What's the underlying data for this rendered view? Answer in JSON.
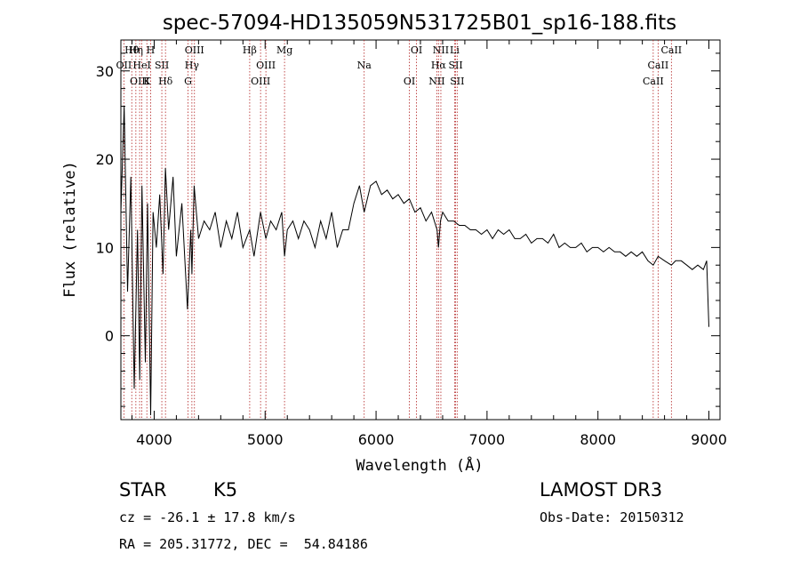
{
  "chart_data": {
    "type": "line",
    "title": "spec-57094-HD135059N531725B01_sp16-188.fits",
    "xlabel": "Wavelength (Å)",
    "ylabel": "Flux (relative)",
    "xlim": [
      3700,
      9100
    ],
    "ylim": [
      -9.5,
      33.5
    ],
    "xticks": [
      4000,
      5000,
      6000,
      7000,
      8000,
      9000
    ],
    "xtick_labels": [
      "4000",
      "5000",
      "6000",
      "7000",
      "8000",
      "9000"
    ],
    "yticks": [
      0,
      10,
      20,
      30
    ],
    "ytick_labels": [
      "0",
      "10",
      "20",
      "30"
    ],
    "grid": false,
    "series": [
      {
        "name": "spectrum",
        "x": [
          3700,
          3730,
          3760,
          3790,
          3820,
          3850,
          3870,
          3890,
          3920,
          3940,
          3968,
          3990,
          4020,
          4050,
          4080,
          4101,
          4130,
          4170,
          4200,
          4250,
          4300,
          4330,
          4340,
          4360,
          4400,
          4450,
          4500,
          4550,
          4600,
          4650,
          4700,
          4750,
          4800,
          4861,
          4900,
          4959,
          5007,
          5050,
          5100,
          5150,
          5175,
          5200,
          5250,
          5300,
          5350,
          5400,
          5450,
          5500,
          5550,
          5600,
          5650,
          5700,
          5750,
          5800,
          5850,
          5893,
          5950,
          6000,
          6050,
          6100,
          6150,
          6200,
          6250,
          6300,
          6350,
          6400,
          6450,
          6500,
          6550,
          6563,
          6580,
          6600,
          6650,
          6700,
          6750,
          6800,
          6850,
          6900,
          6950,
          7000,
          7050,
          7100,
          7150,
          7200,
          7250,
          7300,
          7350,
          7400,
          7450,
          7500,
          7550,
          7600,
          7650,
          7700,
          7750,
          7800,
          7850,
          7900,
          7950,
          8000,
          8050,
          8100,
          8150,
          8200,
          8250,
          8300,
          8350,
          8400,
          8450,
          8498,
          8542,
          8600,
          8662,
          8700,
          8750,
          8800,
          8850,
          8900,
          8950,
          8980,
          9000
        ],
        "y": [
          14,
          26,
          5,
          18,
          -6,
          12,
          -5,
          17,
          -3,
          15,
          -9,
          14,
          10,
          16,
          7,
          19,
          12,
          18,
          9,
          15,
          3,
          12,
          7,
          17,
          11,
          13,
          12,
          14,
          10,
          13,
          11,
          14,
          10,
          12,
          9,
          14,
          11,
          13,
          12,
          14,
          9,
          12,
          13,
          11,
          13,
          12,
          10,
          13,
          11,
          14,
          10,
          12,
          12,
          15,
          17,
          14,
          17,
          17.5,
          16,
          16.5,
          15.5,
          16,
          15,
          15.5,
          14,
          14.5,
          13,
          14,
          12,
          10,
          13,
          14,
          13,
          13,
          12.5,
          12.5,
          12,
          12,
          11.5,
          12,
          11,
          12,
          11.5,
          12,
          11,
          11,
          11.5,
          10.5,
          11,
          11,
          10.5,
          11.5,
          10,
          10.5,
          10,
          10,
          10.5,
          9.5,
          10,
          10,
          9.5,
          10,
          9.5,
          9.5,
          9,
          9.5,
          9,
          9.5,
          8.5,
          8,
          9,
          8.5,
          8,
          8.5,
          8.5,
          8,
          7.5,
          8,
          7.5,
          8.5,
          1
        ]
      }
    ],
    "lines": [
      {
        "label": "Hθ",
        "x": 3798
      },
      {
        "label": "OII",
        "x": 3727
      },
      {
        "label": "OIII",
        "x": 3869
      },
      {
        "label": "Hη",
        "x": 3835
      },
      {
        "label": "HeI",
        "x": 3889
      },
      {
        "label": "K",
        "x": 3934
      },
      {
        "label": "H",
        "x": 3968
      },
      {
        "label": "SII",
        "x": 4069
      },
      {
        "label": "Hδ",
        "x": 4102
      },
      {
        "label": "OIII",
        "x": 4363
      },
      {
        "label": "Hγ",
        "x": 4340
      },
      {
        "label": "G",
        "x": 4305
      },
      {
        "label": "Hβ",
        "x": 4861
      },
      {
        "label": "OIII",
        "x": 5007
      },
      {
        "label": "OIII",
        "x": 4959
      },
      {
        "label": "Mg",
        "x": 5175
      },
      {
        "label": "Na",
        "x": 5893
      },
      {
        "label": "OI",
        "x": 6300
      },
      {
        "label": "OI",
        "x": 6364
      },
      {
        "label": "Hα",
        "x": 6563
      },
      {
        "label": "NII",
        "x": 6548
      },
      {
        "label": "NII",
        "x": 6584
      },
      {
        "label": "SII",
        "x": 6717
      },
      {
        "label": "SII",
        "x": 6731
      },
      {
        "label": "Li",
        "x": 6708
      },
      {
        "label": "CaII",
        "x": 8542
      },
      {
        "label": "CaII",
        "x": 8498
      },
      {
        "label": "CaII",
        "x": 8662
      }
    ],
    "line_color": "#b22222"
  },
  "info": {
    "class": "STAR",
    "subclass": "K5",
    "survey": "LAMOST DR3",
    "cz": "cz = -26.1 ± 17.8 km/s",
    "obs_date": "Obs-Date: 20150312",
    "radec": "RA = 205.31772, DEC =  54.84186"
  }
}
